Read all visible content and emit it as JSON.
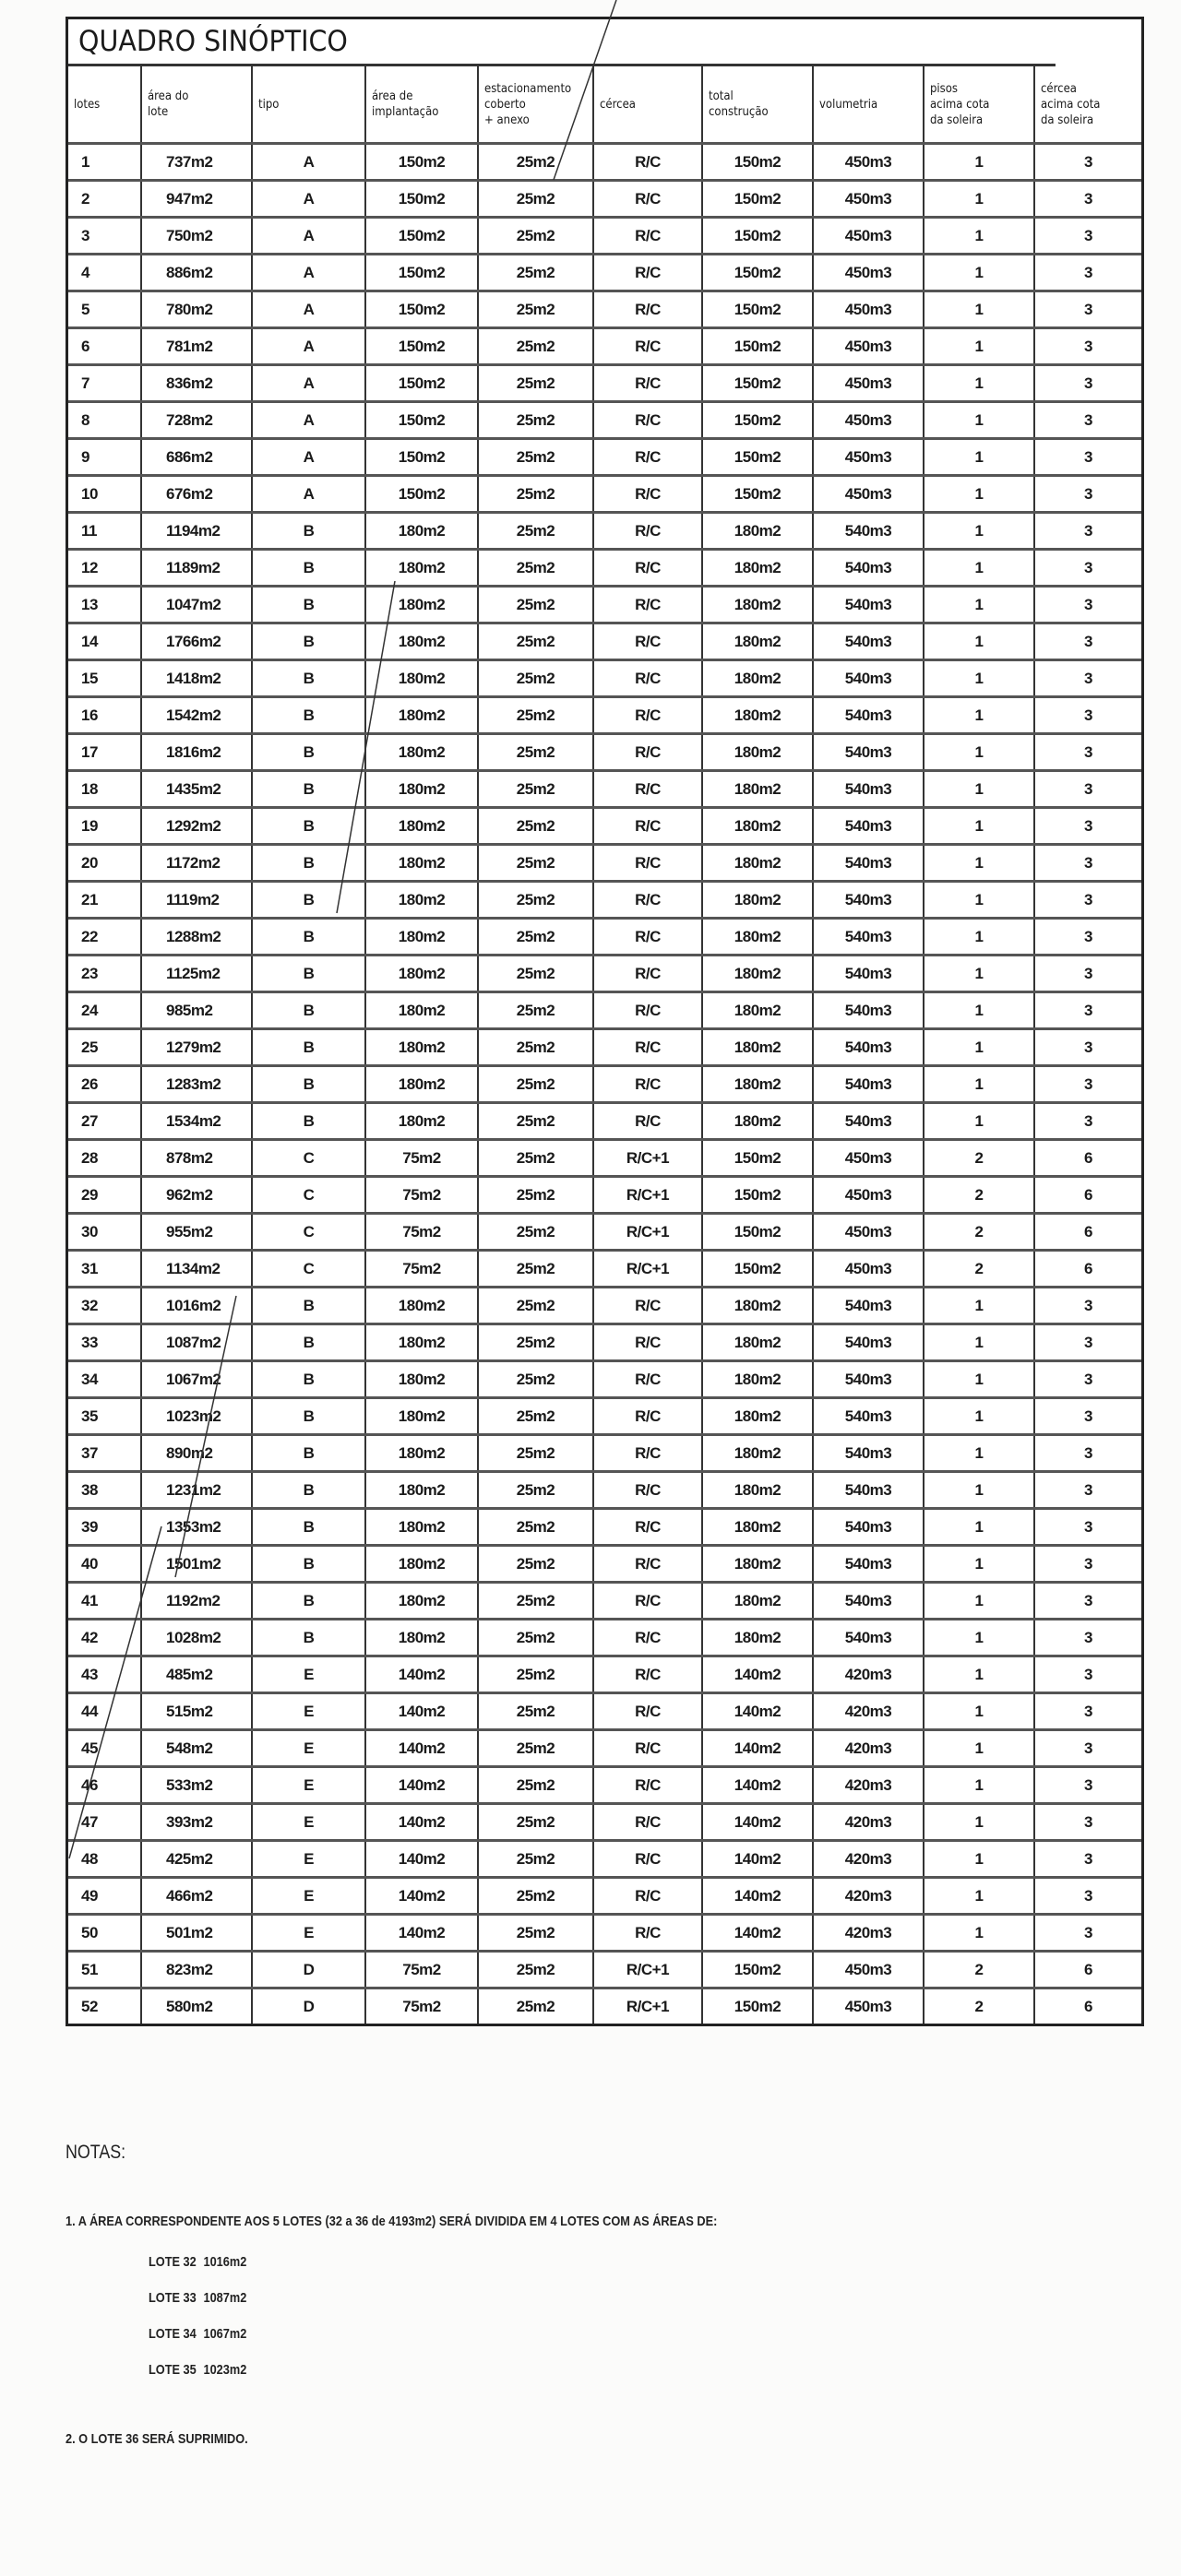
{
  "title": "QUADRO SINÓPTICO",
  "columns": [
    "lotes",
    "área do\nlote",
    "tipo",
    "área de\nimplantação",
    "estacionamento\ncoberto\n+ anexo",
    "cércea",
    "total\nconstrução",
    "volumetria",
    "pisos\nacima cota\nda soleira",
    "cércea\nacima cota\nda soleira"
  ],
  "rows": [
    [
      "1",
      "737m2",
      "A",
      "150m2",
      "25m2",
      "R/C",
      "150m2",
      "450m3",
      "1",
      "3"
    ],
    [
      "2",
      "947m2",
      "A",
      "150m2",
      "25m2",
      "R/C",
      "150m2",
      "450m3",
      "1",
      "3"
    ],
    [
      "3",
      "750m2",
      "A",
      "150m2",
      "25m2",
      "R/C",
      "150m2",
      "450m3",
      "1",
      "3"
    ],
    [
      "4",
      "886m2",
      "A",
      "150m2",
      "25m2",
      "R/C",
      "150m2",
      "450m3",
      "1",
      "3"
    ],
    [
      "5",
      "780m2",
      "A",
      "150m2",
      "25m2",
      "R/C",
      "150m2",
      "450m3",
      "1",
      "3"
    ],
    [
      "6",
      "781m2",
      "A",
      "150m2",
      "25m2",
      "R/C",
      "150m2",
      "450m3",
      "1",
      "3"
    ],
    [
      "7",
      "836m2",
      "A",
      "150m2",
      "25m2",
      "R/C",
      "150m2",
      "450m3",
      "1",
      "3"
    ],
    [
      "8",
      "728m2",
      "A",
      "150m2",
      "25m2",
      "R/C",
      "150m2",
      "450m3",
      "1",
      "3"
    ],
    [
      "9",
      "686m2",
      "A",
      "150m2",
      "25m2",
      "R/C",
      "150m2",
      "450m3",
      "1",
      "3"
    ],
    [
      "10",
      "676m2",
      "A",
      "150m2",
      "25m2",
      "R/C",
      "150m2",
      "450m3",
      "1",
      "3"
    ],
    [
      "11",
      "1194m2",
      "B",
      "180m2",
      "25m2",
      "R/C",
      "180m2",
      "540m3",
      "1",
      "3"
    ],
    [
      "12",
      "1189m2",
      "B",
      "180m2",
      "25m2",
      "R/C",
      "180m2",
      "540m3",
      "1",
      "3"
    ],
    [
      "13",
      "1047m2",
      "B",
      "180m2",
      "25m2",
      "R/C",
      "180m2",
      "540m3",
      "1",
      "3"
    ],
    [
      "14",
      "1766m2",
      "B",
      "180m2",
      "25m2",
      "R/C",
      "180m2",
      "540m3",
      "1",
      "3"
    ],
    [
      "15",
      "1418m2",
      "B",
      "180m2",
      "25m2",
      "R/C",
      "180m2",
      "540m3",
      "1",
      "3"
    ],
    [
      "16",
      "1542m2",
      "B",
      "180m2",
      "25m2",
      "R/C",
      "180m2",
      "540m3",
      "1",
      "3"
    ],
    [
      "17",
      "1816m2",
      "B",
      "180m2",
      "25m2",
      "R/C",
      "180m2",
      "540m3",
      "1",
      "3"
    ],
    [
      "18",
      "1435m2",
      "B",
      "180m2",
      "25m2",
      "R/C",
      "180m2",
      "540m3",
      "1",
      "3"
    ],
    [
      "19",
      "1292m2",
      "B",
      "180m2",
      "25m2",
      "R/C",
      "180m2",
      "540m3",
      "1",
      "3"
    ],
    [
      "20",
      "1172m2",
      "B",
      "180m2",
      "25m2",
      "R/C",
      "180m2",
      "540m3",
      "1",
      "3"
    ],
    [
      "21",
      "1119m2",
      "B",
      "180m2",
      "25m2",
      "R/C",
      "180m2",
      "540m3",
      "1",
      "3"
    ],
    [
      "22",
      "1288m2",
      "B",
      "180m2",
      "25m2",
      "R/C",
      "180m2",
      "540m3",
      "1",
      "3"
    ],
    [
      "23",
      "1125m2",
      "B",
      "180m2",
      "25m2",
      "R/C",
      "180m2",
      "540m3",
      "1",
      "3"
    ],
    [
      "24",
      "985m2",
      "B",
      "180m2",
      "25m2",
      "R/C",
      "180m2",
      "540m3",
      "1",
      "3"
    ],
    [
      "25",
      "1279m2",
      "B",
      "180m2",
      "25m2",
      "R/C",
      "180m2",
      "540m3",
      "1",
      "3"
    ],
    [
      "26",
      "1283m2",
      "B",
      "180m2",
      "25m2",
      "R/C",
      "180m2",
      "540m3",
      "1",
      "3"
    ],
    [
      "27",
      "1534m2",
      "B",
      "180m2",
      "25m2",
      "R/C",
      "180m2",
      "540m3",
      "1",
      "3"
    ],
    [
      "28",
      "878m2",
      "C",
      "75m2",
      "25m2",
      "R/C+1",
      "150m2",
      "450m3",
      "2",
      "6"
    ],
    [
      "29",
      "962m2",
      "C",
      "75m2",
      "25m2",
      "R/C+1",
      "150m2",
      "450m3",
      "2",
      "6"
    ],
    [
      "30",
      "955m2",
      "C",
      "75m2",
      "25m2",
      "R/C+1",
      "150m2",
      "450m3",
      "2",
      "6"
    ],
    [
      "31",
      "1134m2",
      "C",
      "75m2",
      "25m2",
      "R/C+1",
      "150m2",
      "450m3",
      "2",
      "6"
    ],
    [
      "32",
      "1016m2",
      "B",
      "180m2",
      "25m2",
      "R/C",
      "180m2",
      "540m3",
      "1",
      "3"
    ],
    [
      "33",
      "1087m2",
      "B",
      "180m2",
      "25m2",
      "R/C",
      "180m2",
      "540m3",
      "1",
      "3"
    ],
    [
      "34",
      "1067m2",
      "B",
      "180m2",
      "25m2",
      "R/C",
      "180m2",
      "540m3",
      "1",
      "3"
    ],
    [
      "35",
      "1023m2",
      "B",
      "180m2",
      "25m2",
      "R/C",
      "180m2",
      "540m3",
      "1",
      "3"
    ],
    [
      "37",
      "890m2",
      "B",
      "180m2",
      "25m2",
      "R/C",
      "180m2",
      "540m3",
      "1",
      "3"
    ],
    [
      "38",
      "1231m2",
      "B",
      "180m2",
      "25m2",
      "R/C",
      "180m2",
      "540m3",
      "1",
      "3"
    ],
    [
      "39",
      "1353m2",
      "B",
      "180m2",
      "25m2",
      "R/C",
      "180m2",
      "540m3",
      "1",
      "3"
    ],
    [
      "40",
      "1501m2",
      "B",
      "180m2",
      "25m2",
      "R/C",
      "180m2",
      "540m3",
      "1",
      "3"
    ],
    [
      "41",
      "1192m2",
      "B",
      "180m2",
      "25m2",
      "R/C",
      "180m2",
      "540m3",
      "1",
      "3"
    ],
    [
      "42",
      "1028m2",
      "B",
      "180m2",
      "25m2",
      "R/C",
      "180m2",
      "540m3",
      "1",
      "3"
    ],
    [
      "43",
      "485m2",
      "E",
      "140m2",
      "25m2",
      "R/C",
      "140m2",
      "420m3",
      "1",
      "3"
    ],
    [
      "44",
      "515m2",
      "E",
      "140m2",
      "25m2",
      "R/C",
      "140m2",
      "420m3",
      "1",
      "3"
    ],
    [
      "45",
      "548m2",
      "E",
      "140m2",
      "25m2",
      "R/C",
      "140m2",
      "420m3",
      "1",
      "3"
    ],
    [
      "46",
      "533m2",
      "E",
      "140m2",
      "25m2",
      "R/C",
      "140m2",
      "420m3",
      "1",
      "3"
    ],
    [
      "47",
      "393m2",
      "E",
      "140m2",
      "25m2",
      "R/C",
      "140m2",
      "420m3",
      "1",
      "3"
    ],
    [
      "48",
      "425m2",
      "E",
      "140m2",
      "25m2",
      "R/C",
      "140m2",
      "420m3",
      "1",
      "3"
    ],
    [
      "49",
      "466m2",
      "E",
      "140m2",
      "25m2",
      "R/C",
      "140m2",
      "420m3",
      "1",
      "3"
    ],
    [
      "50",
      "501m2",
      "E",
      "140m2",
      "25m2",
      "R/C",
      "140m2",
      "420m3",
      "1",
      "3"
    ],
    [
      "51",
      "823m2",
      "D",
      "75m2",
      "25m2",
      "R/C+1",
      "150m2",
      "450m3",
      "2",
      "6"
    ],
    [
      "52",
      "580m2",
      "D",
      "75m2",
      "25m2",
      "R/C+1",
      "150m2",
      "450m3",
      "2",
      "6"
    ]
  ],
  "notes": {
    "title": "NOTAS:",
    "note1": "1. A ÁREA CORRESPONDENTE AOS 5 LOTES (32 a 36 de 4193m2) SERÁ DIVIDIDA EM 4 LOTES COM AS ÁREAS DE:",
    "lotes": [
      {
        "label": "LOTE 32",
        "area": "1016m2"
      },
      {
        "label": "LOTE 33",
        "area": "1087m2"
      },
      {
        "label": "LOTE 34",
        "area": "1067m2"
      },
      {
        "label": "LOTE 35",
        "area": "1023m2"
      }
    ],
    "note2": "2. O LOTE 36 SERÁ SUPRIMIDO."
  }
}
